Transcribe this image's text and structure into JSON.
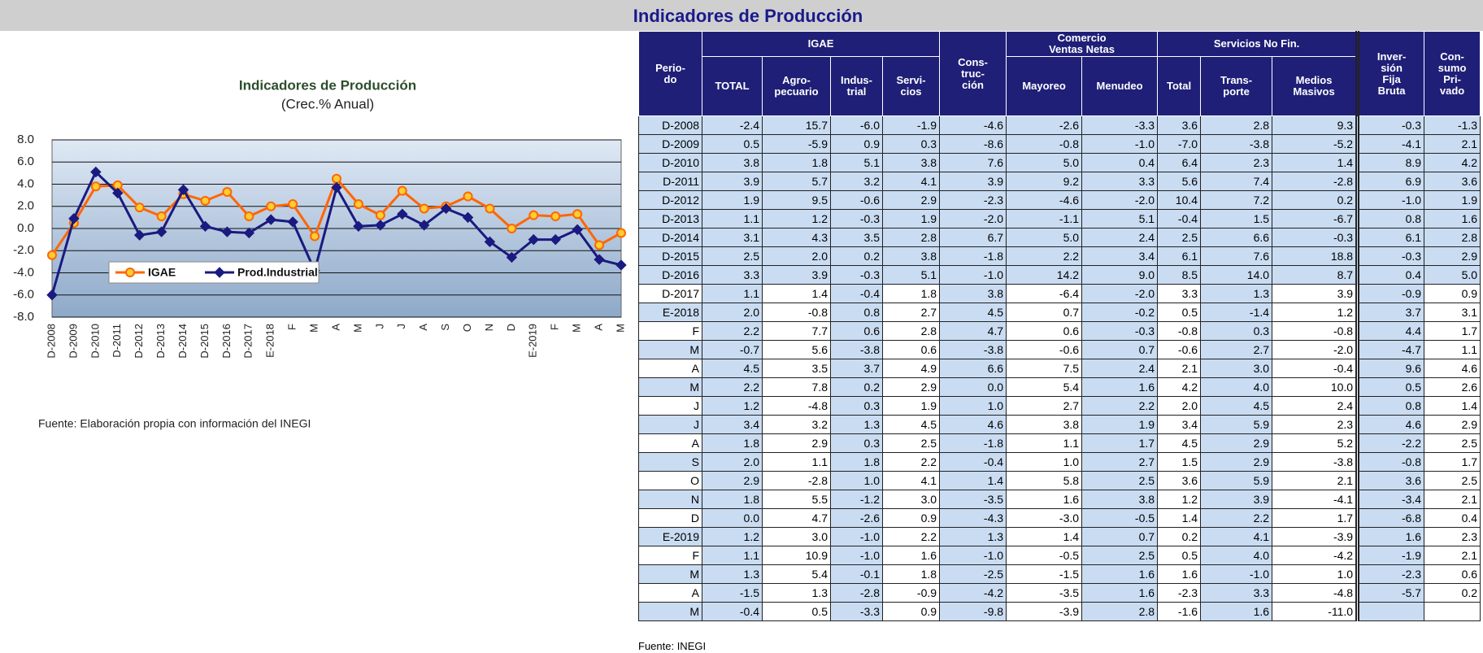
{
  "header": {
    "title": "Indicadores de Producción"
  },
  "chart_data": {
    "type": "line",
    "title": "Indicadores de Producción",
    "subtitle": "(Crec.% Anual)",
    "categories": [
      "D-2008",
      "D-2009",
      "D-2010",
      "D-2011",
      "D-2012",
      "D-2013",
      "D-2014",
      "D-2015",
      "D-2016",
      "D-2017",
      "E-2018",
      "F",
      "M",
      "A",
      "M",
      "J",
      "J",
      "A",
      "S",
      "O",
      "N",
      "D",
      "E-2019",
      "F",
      "M",
      "A",
      "M"
    ],
    "series": [
      {
        "name": "IGAE",
        "color": "#ff6600",
        "marker": "circle",
        "marker_fill": "#ffcc33",
        "values": [
          -2.4,
          0.5,
          3.8,
          3.9,
          1.9,
          1.1,
          3.1,
          2.5,
          3.3,
          1.1,
          2.0,
          2.2,
          -0.7,
          4.5,
          2.2,
          1.2,
          3.4,
          1.8,
          2.0,
          2.9,
          1.8,
          0.0,
          1.2,
          1.1,
          1.3,
          -1.5,
          -0.4
        ]
      },
      {
        "name": "Prod.Industrial",
        "color": "#1a1a80",
        "marker": "diamond",
        "marker_fill": "#1a1a80",
        "values": [
          -6.0,
          0.9,
          5.1,
          3.2,
          -0.6,
          -0.3,
          3.5,
          0.2,
          -0.3,
          -0.4,
          0.8,
          0.6,
          -3.8,
          3.7,
          0.2,
          0.3,
          1.3,
          0.3,
          1.8,
          1.0,
          -1.2,
          -2.6,
          -1.0,
          -1.0,
          -0.1,
          -2.8,
          -3.3
        ]
      }
    ],
    "ylim": [
      -8,
      8
    ],
    "yticks": [
      {
        "value": -8,
        "label": "-8.0"
      },
      {
        "value": -6,
        "label": "-6.0"
      },
      {
        "value": -4,
        "label": "-4.0"
      },
      {
        "value": -2,
        "label": "-2.0"
      },
      {
        "value": 0,
        "label": "0.0"
      },
      {
        "value": 2,
        "label": "2.0"
      },
      {
        "value": 4,
        "label": "4.0"
      },
      {
        "value": 6,
        "label": "6.0"
      },
      {
        "value": 8,
        "label": "8.0"
      }
    ],
    "grid": true,
    "legend": "lower left",
    "note": "Fuente: Elaboración propia con información del INEGI"
  },
  "table": {
    "header_groups": [
      {
        "lines": [
          "Perio-",
          "do"
        ]
      },
      {
        "lines": [
          "IGAE"
        ],
        "sub": [
          [
            "TOTAL"
          ],
          [
            "Agro-",
            "pecuario"
          ],
          [
            "Indus-",
            "trial"
          ],
          [
            "Servi-",
            "cios"
          ]
        ]
      },
      {
        "lines": [
          "Cons-",
          "truc-",
          "ción"
        ]
      },
      {
        "lines": [
          "Comercio",
          "Ventas Netas"
        ],
        "sub": [
          [
            "Mayoreo"
          ],
          [
            "Menudeo"
          ]
        ]
      },
      {
        "lines": [
          "Servicios No Fin."
        ],
        "sub": [
          [
            "Total"
          ],
          [
            "Trans-",
            "porte"
          ],
          [
            "Medios",
            "Masivos"
          ]
        ]
      },
      {
        "lines": [
          "Inver-",
          "sión",
          "Fija",
          "Bruta"
        ]
      },
      {
        "lines": [
          "Con-",
          "sumo",
          "Pri-",
          "vado"
        ]
      }
    ],
    "rows": [
      [
        "D-2008",
        "-2.4",
        "15.7",
        "-6.0",
        "-1.9",
        "-4.6",
        "-2.6",
        "-3.3",
        "3.6",
        "2.8",
        "9.3",
        "-0.3",
        "-1.3"
      ],
      [
        "D-2009",
        "0.5",
        "-5.9",
        "0.9",
        "0.3",
        "-8.6",
        "-0.8",
        "-1.0",
        "-7.0",
        "-3.8",
        "-5.2",
        "-4.1",
        "2.1"
      ],
      [
        "D-2010",
        "3.8",
        "1.8",
        "5.1",
        "3.8",
        "7.6",
        "5.0",
        "0.4",
        "6.4",
        "2.3",
        "1.4",
        "8.9",
        "4.2"
      ],
      [
        "D-2011",
        "3.9",
        "5.7",
        "3.2",
        "4.1",
        "3.9",
        "9.2",
        "3.3",
        "5.6",
        "7.4",
        "-2.8",
        "6.9",
        "3.6"
      ],
      [
        "D-2012",
        "1.9",
        "9.5",
        "-0.6",
        "2.9",
        "-2.3",
        "-4.6",
        "-2.0",
        "10.4",
        "7.2",
        "0.2",
        "-1.0",
        "1.9"
      ],
      [
        "D-2013",
        "1.1",
        "1.2",
        "-0.3",
        "1.9",
        "-2.0",
        "-1.1",
        "5.1",
        "-0.4",
        "1.5",
        "-6.7",
        "0.8",
        "1.6"
      ],
      [
        "D-2014",
        "3.1",
        "4.3",
        "3.5",
        "2.8",
        "6.7",
        "5.0",
        "2.4",
        "2.5",
        "6.6",
        "-0.3",
        "6.1",
        "2.8"
      ],
      [
        "D-2015",
        "2.5",
        "2.0",
        "0.2",
        "3.8",
        "-1.8",
        "2.2",
        "3.4",
        "6.1",
        "7.6",
        "18.8",
        "-0.3",
        "2.9"
      ],
      [
        "D-2016",
        "3.3",
        "3.9",
        "-0.3",
        "5.1",
        "-1.0",
        "14.2",
        "9.0",
        "8.5",
        "14.0",
        "8.7",
        "0.4",
        "5.0"
      ],
      [
        "D-2017",
        "1.1",
        "1.4",
        "-0.4",
        "1.8",
        "3.8",
        "-6.4",
        "-2.0",
        "3.3",
        "1.3",
        "3.9",
        "-0.9",
        "0.9"
      ],
      [
        "E-2018",
        "2.0",
        "-0.8",
        "0.8",
        "2.7",
        "4.5",
        "0.7",
        "-0.2",
        "0.5",
        "-1.4",
        "1.2",
        "3.7",
        "3.1"
      ],
      [
        "F",
        "2.2",
        "7.7",
        "0.6",
        "2.8",
        "4.7",
        "0.6",
        "-0.3",
        "-0.8",
        "0.3",
        "-0.8",
        "4.4",
        "1.7"
      ],
      [
        "M",
        "-0.7",
        "5.6",
        "-3.8",
        "0.6",
        "-3.8",
        "-0.6",
        "0.7",
        "-0.6",
        "2.7",
        "-2.0",
        "-4.7",
        "1.1"
      ],
      [
        "A",
        "4.5",
        "3.5",
        "3.7",
        "4.9",
        "6.6",
        "7.5",
        "2.4",
        "2.1",
        "3.0",
        "-0.4",
        "9.6",
        "4.6"
      ],
      [
        "M",
        "2.2",
        "7.8",
        "0.2",
        "2.9",
        "0.0",
        "5.4",
        "1.6",
        "4.2",
        "4.0",
        "10.0",
        "0.5",
        "2.6"
      ],
      [
        "J",
        "1.2",
        "-4.8",
        "0.3",
        "1.9",
        "1.0",
        "2.7",
        "2.2",
        "2.0",
        "4.5",
        "2.4",
        "0.8",
        "1.4"
      ],
      [
        "J",
        "3.4",
        "3.2",
        "1.3",
        "4.5",
        "4.6",
        "3.8",
        "1.9",
        "3.4",
        "5.9",
        "2.3",
        "4.6",
        "2.9"
      ],
      [
        "A",
        "1.8",
        "2.9",
        "0.3",
        "2.5",
        "-1.8",
        "1.1",
        "1.7",
        "4.5",
        "2.9",
        "5.2",
        "-2.2",
        "2.5"
      ],
      [
        "S",
        "2.0",
        "1.1",
        "1.8",
        "2.2",
        "-0.4",
        "1.0",
        "2.7",
        "1.5",
        "2.9",
        "-3.8",
        "-0.8",
        "1.7"
      ],
      [
        "O",
        "2.9",
        "-2.8",
        "1.0",
        "4.1",
        "1.4",
        "5.8",
        "2.5",
        "3.6",
        "5.9",
        "2.1",
        "3.6",
        "2.5"
      ],
      [
        "N",
        "1.8",
        "5.5",
        "-1.2",
        "3.0",
        "-3.5",
        "1.6",
        "3.8",
        "1.2",
        "3.9",
        "-4.1",
        "-3.4",
        "2.1"
      ],
      [
        "D",
        "0.0",
        "4.7",
        "-2.6",
        "0.9",
        "-4.3",
        "-3.0",
        "-0.5",
        "1.4",
        "2.2",
        "1.7",
        "-6.8",
        "0.4"
      ],
      [
        "E-2019",
        "1.2",
        "3.0",
        "-1.0",
        "2.2",
        "1.3",
        "1.4",
        "0.7",
        "0.2",
        "4.1",
        "-3.9",
        "1.6",
        "2.3"
      ],
      [
        "F",
        "1.1",
        "10.9",
        "-1.0",
        "1.6",
        "-1.0",
        "-0.5",
        "2.5",
        "0.5",
        "4.0",
        "-4.2",
        "-1.9",
        "2.1"
      ],
      [
        "M",
        "1.3",
        "5.4",
        "-0.1",
        "1.8",
        "-2.5",
        "-1.5",
        "1.6",
        "1.6",
        "-1.0",
        "1.0",
        "-2.3",
        "0.6"
      ],
      [
        "A",
        "-1.5",
        "1.3",
        "-2.8",
        "-0.9",
        "-4.2",
        "-3.5",
        "1.6",
        "-2.3",
        "3.3",
        "-4.8",
        "-5.7",
        "0.2"
      ],
      [
        "M",
        "-0.4",
        "0.5",
        "-3.3",
        "0.9",
        "-9.8",
        "-3.9",
        "2.8",
        "-1.6",
        "1.6",
        "-11.0",
        null,
        null
      ]
    ],
    "note": "Fuente: INEGI"
  }
}
